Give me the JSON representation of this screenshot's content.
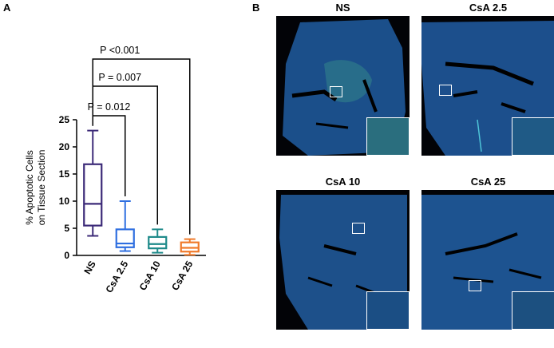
{
  "panels": {
    "a_label": "A",
    "b_label": "B"
  },
  "chart_data": {
    "type": "box",
    "ylabel_line1": "% Apoptotic Cells",
    "ylabel_line2": "on Tissue Section",
    "ylim": [
      0,
      25
    ],
    "yticks": [
      0,
      5,
      10,
      15,
      20,
      25
    ],
    "categories": [
      "NS",
      "CsA 2.5",
      "CsA 10",
      "CsA 25"
    ],
    "colors": [
      "#3c2a78",
      "#2f6fe0",
      "#1e8a8a",
      "#f07a2a"
    ],
    "boxes": [
      {
        "min": 3.6,
        "q1": 5.5,
        "median": 9.5,
        "q3": 16.8,
        "max": 23.0
      },
      {
        "min": 0.8,
        "q1": 1.5,
        "median": 2.2,
        "q3": 4.8,
        "max": 10.0
      },
      {
        "min": 0.5,
        "q1": 1.3,
        "median": 2.1,
        "q3": 3.4,
        "max": 4.8
      },
      {
        "min": 0.1,
        "q1": 0.7,
        "median": 1.4,
        "q3": 2.4,
        "max": 3.0
      }
    ],
    "comparisons": [
      {
        "from": 0,
        "to": 1,
        "label": "P = 0.012"
      },
      {
        "from": 0,
        "to": 2,
        "label": "P = 0.007"
      },
      {
        "from": 0,
        "to": 3,
        "label": "P <0.001"
      }
    ]
  },
  "micrographs": [
    {
      "title": "NS"
    },
    {
      "title": "CsA 2.5"
    },
    {
      "title": "CsA 10"
    },
    {
      "title": "CsA 25"
    }
  ]
}
